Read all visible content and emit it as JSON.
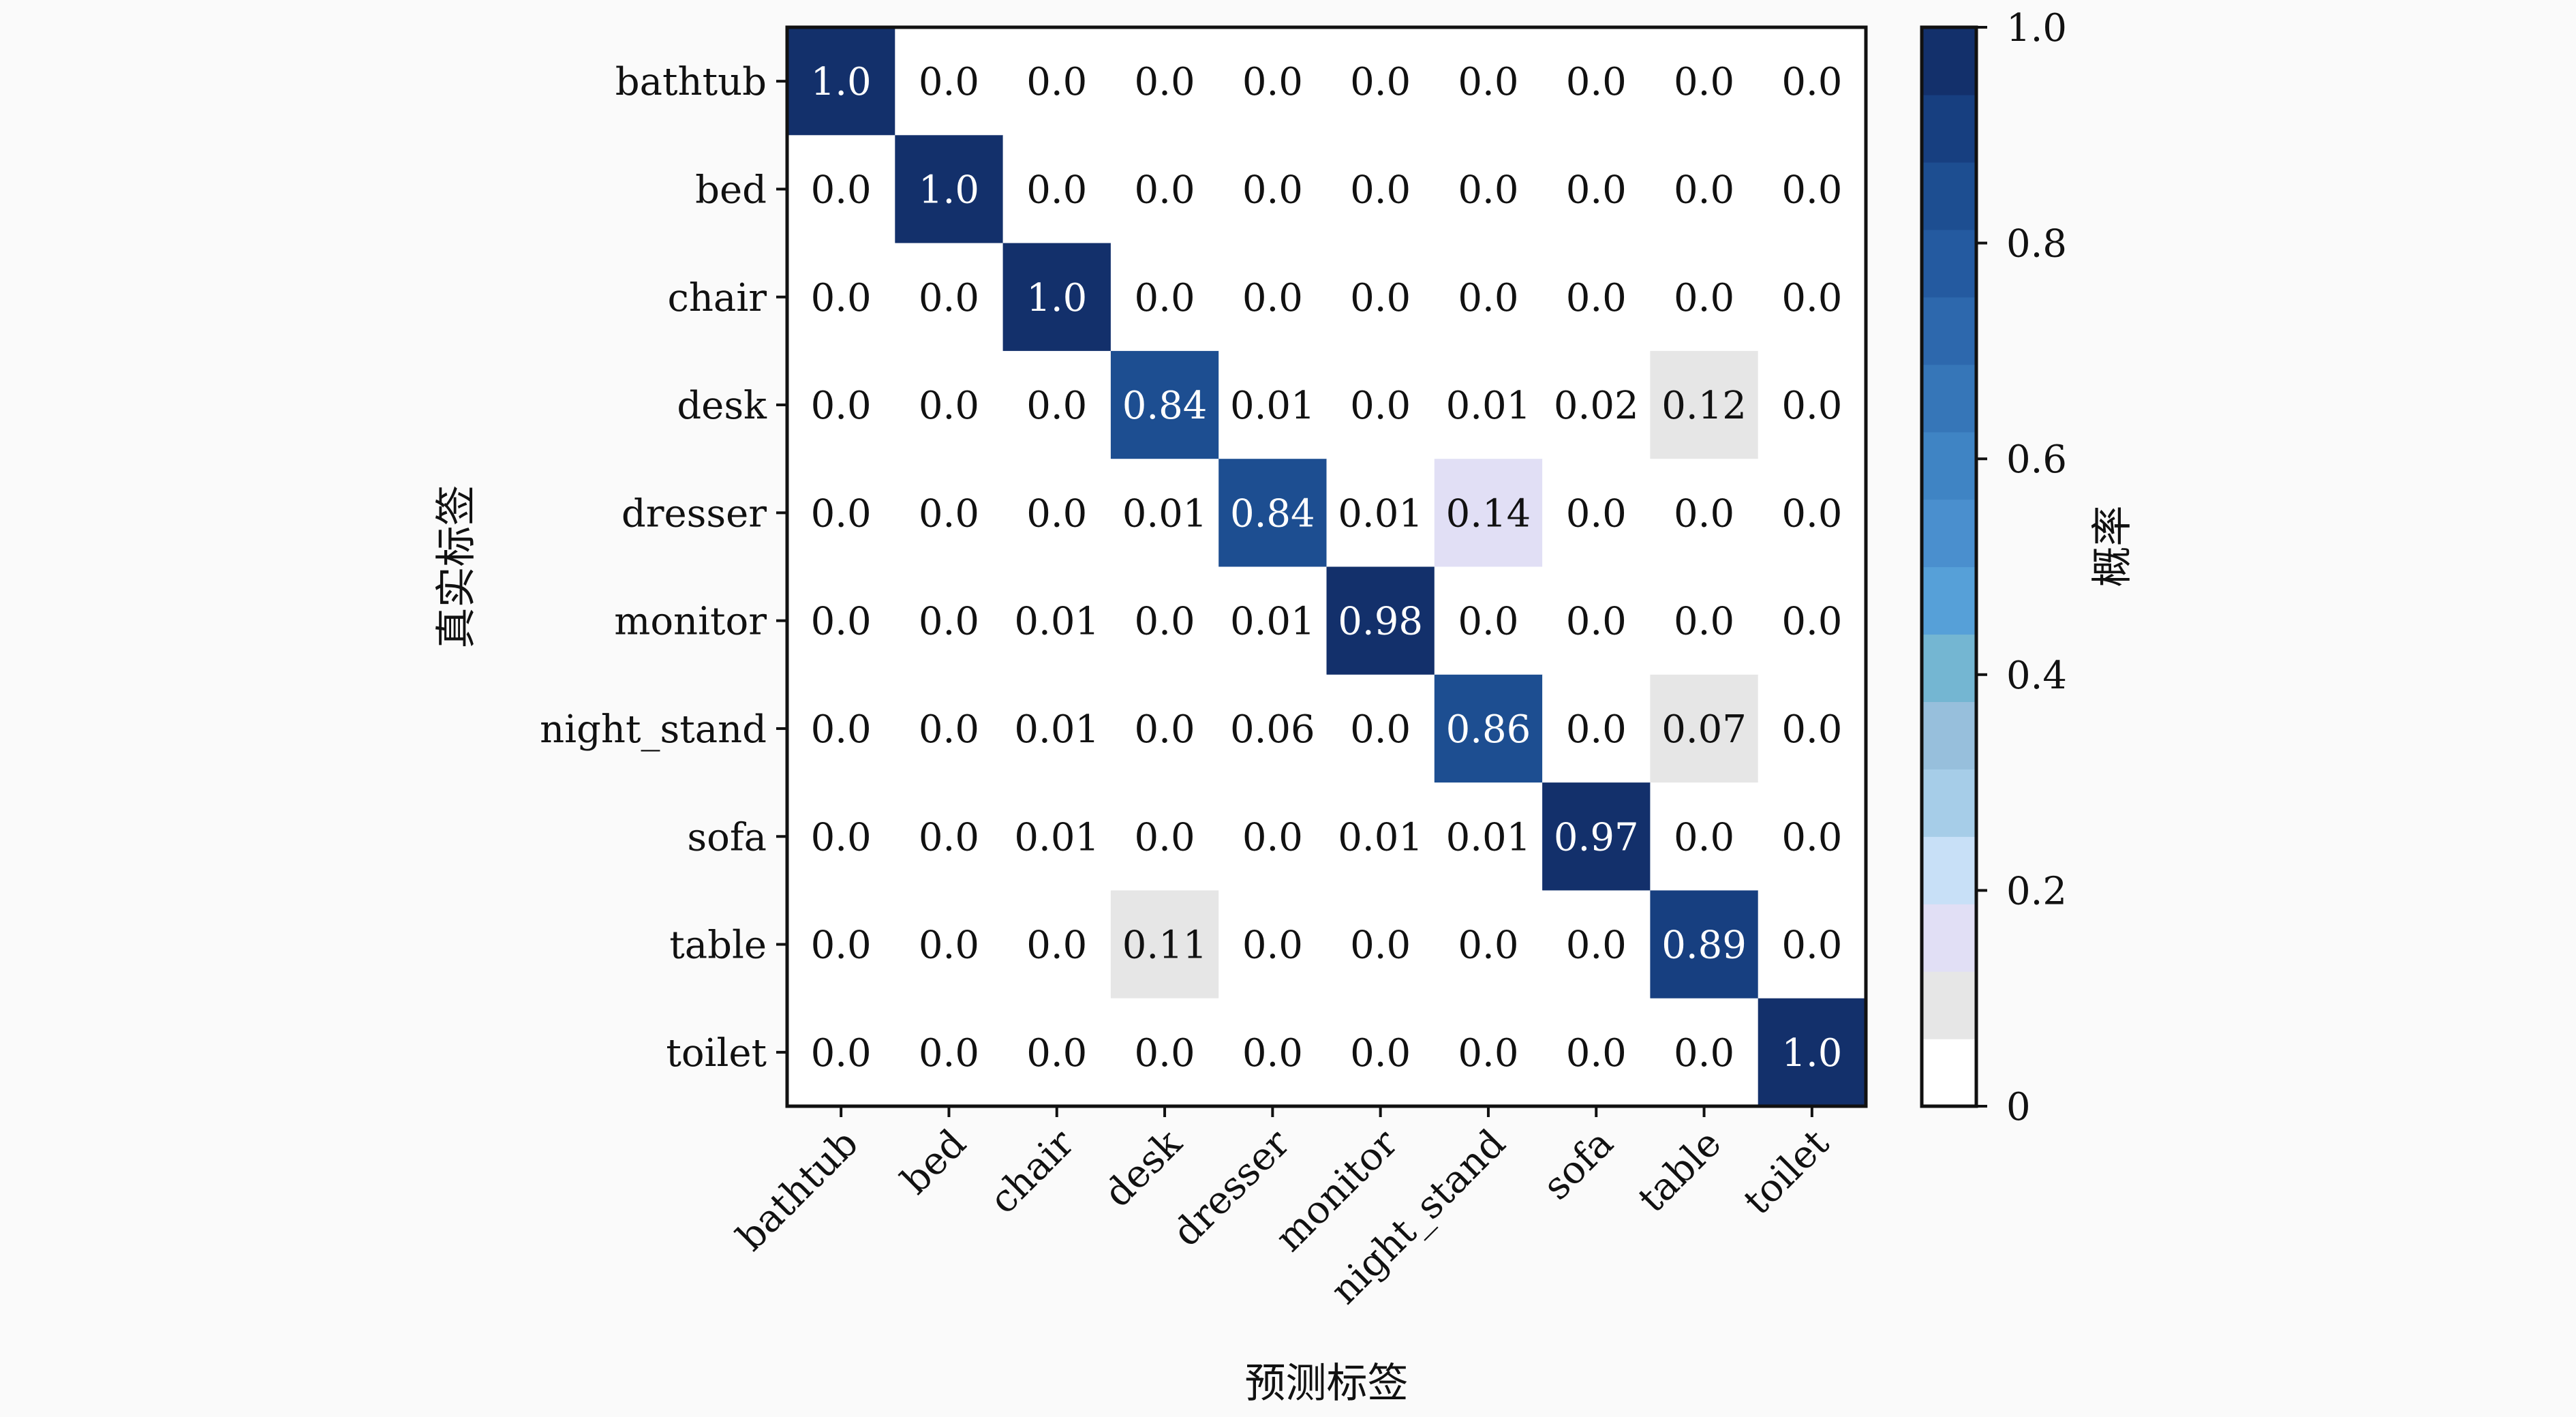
{
  "chart_data": {
    "type": "heatmap",
    "xlabel": "预测标签",
    "ylabel": "真实标签",
    "colorbar_label": "概率",
    "row_labels": [
      "bathtub",
      "bed",
      "chair",
      "desk",
      "dresser",
      "monitor",
      "night_stand",
      "sofa",
      "table",
      "toilet"
    ],
    "col_labels": [
      "bathtub",
      "bed",
      "chair",
      "desk",
      "dresser",
      "monitor",
      "night_stand",
      "sofa",
      "table",
      "toilet"
    ],
    "values": [
      [
        "1.0",
        "0.0",
        "0.0",
        "0.0",
        "0.0",
        "0.0",
        "0.0",
        "0.0",
        "0.0",
        "0.0"
      ],
      [
        "0.0",
        "1.0",
        "0.0",
        "0.0",
        "0.0",
        "0.0",
        "0.0",
        "0.0",
        "0.0",
        "0.0"
      ],
      [
        "0.0",
        "0.0",
        "1.0",
        "0.0",
        "0.0",
        "0.0",
        "0.0",
        "0.0",
        "0.0",
        "0.0"
      ],
      [
        "0.0",
        "0.0",
        "0.0",
        "0.84",
        "0.01",
        "0.0",
        "0.01",
        "0.02",
        "0.12",
        "0.0"
      ],
      [
        "0.0",
        "0.0",
        "0.0",
        "0.01",
        "0.84",
        "0.01",
        "0.14",
        "0.0",
        "0.0",
        "0.0"
      ],
      [
        "0.0",
        "0.0",
        "0.01",
        "0.0",
        "0.01",
        "0.98",
        "0.0",
        "0.0",
        "0.0",
        "0.0"
      ],
      [
        "0.0",
        "0.0",
        "0.01",
        "0.0",
        "0.06",
        "0.0",
        "0.86",
        "0.0",
        "0.07",
        "0.0"
      ],
      [
        "0.0",
        "0.0",
        "0.01",
        "0.0",
        "0.0",
        "0.01",
        "0.01",
        "0.97",
        "0.0",
        "0.0"
      ],
      [
        "0.0",
        "0.0",
        "0.0",
        "0.11",
        "0.0",
        "0.0",
        "0.0",
        "0.0",
        "0.89",
        "0.0"
      ],
      [
        "0.0",
        "0.0",
        "0.0",
        "0.0",
        "0.0",
        "0.0",
        "0.0",
        "0.0",
        "0.0",
        "1.0"
      ]
    ],
    "colorbar": {
      "range": [
        0,
        1
      ],
      "ticks": [
        0,
        0.2,
        0.4,
        0.6,
        0.8,
        1.0
      ],
      "tick_labels": [
        "0",
        "0.2",
        "0.4",
        "0.6",
        "0.8",
        "1.0"
      ],
      "colors": [
        "#ffffff",
        "#e6e6e6",
        "#e1dff5",
        "#c8e0f7",
        "#a6cde8",
        "#97bfdc",
        "#74b6d2",
        "#56a0d8",
        "#4a8fce",
        "#3f84c4",
        "#3676b8",
        "#2d68ad",
        "#245aa0",
        "#1d4e91",
        "#173f80",
        "#13306b"
      ]
    },
    "grid": false
  }
}
